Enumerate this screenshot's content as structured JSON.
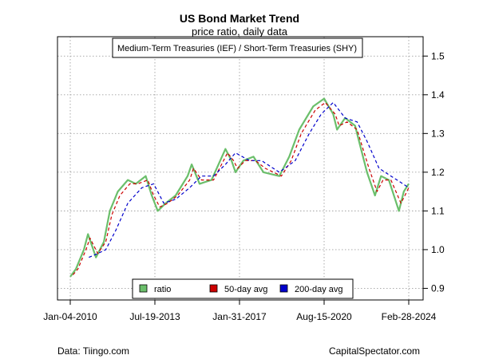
{
  "chart_data": {
    "type": "line",
    "title": "US Bond Market Trend",
    "subtitle": "price ratio, daily data",
    "annotation": "Medium-Term Treasuries (IEF) / Short-Term Treasuries (SHY)",
    "x_tick_labels": [
      "Jan-04-2010",
      "Jul-19-2013",
      "Jan-31-2017",
      "Aug-15-2020",
      "Feb-28-2024"
    ],
    "x_range": [
      "2010-01-04",
      "2024-02-28"
    ],
    "y_ticks": [
      "0.9",
      "1.0",
      "1.1",
      "1.2",
      "1.3",
      "1.4",
      "1.5"
    ],
    "ylim": [
      0.87,
      1.55
    ],
    "grid": true,
    "legend_position": "bottom-center",
    "series": [
      {
        "name": "ratio",
        "color": "#6bbf6b",
        "style": "solid",
        "points": [
          [
            "2010-01-04",
            0.93
          ],
          [
            "2010-04-01",
            0.95
          ],
          [
            "2010-08-01",
            1.0
          ],
          [
            "2010-10-01",
            1.04
          ],
          [
            "2011-02-01",
            0.98
          ],
          [
            "2011-06-01",
            1.02
          ],
          [
            "2011-09-01",
            1.1
          ],
          [
            "2012-01-01",
            1.15
          ],
          [
            "2012-06-01",
            1.18
          ],
          [
            "2012-10-01",
            1.17
          ],
          [
            "2013-03-01",
            1.19
          ],
          [
            "2013-06-01",
            1.14
          ],
          [
            "2013-09-01",
            1.1
          ],
          [
            "2014-01-01",
            1.12
          ],
          [
            "2014-06-01",
            1.14
          ],
          [
            "2014-12-01",
            1.19
          ],
          [
            "2015-02-01",
            1.22
          ],
          [
            "2015-06-01",
            1.17
          ],
          [
            "2015-12-01",
            1.18
          ],
          [
            "2016-07-01",
            1.26
          ],
          [
            "2016-10-01",
            1.23
          ],
          [
            "2016-12-01",
            1.2
          ],
          [
            "2017-04-01",
            1.23
          ],
          [
            "2017-09-01",
            1.24
          ],
          [
            "2018-02-01",
            1.2
          ],
          [
            "2018-10-01",
            1.19
          ],
          [
            "2019-03-01",
            1.24
          ],
          [
            "2019-08-01",
            1.31
          ],
          [
            "2020-03-01",
            1.37
          ],
          [
            "2020-08-15",
            1.39
          ],
          [
            "2021-01-01",
            1.35
          ],
          [
            "2021-03-01",
            1.31
          ],
          [
            "2021-07-01",
            1.34
          ],
          [
            "2021-12-01",
            1.32
          ],
          [
            "2022-03-01",
            1.26
          ],
          [
            "2022-06-01",
            1.2
          ],
          [
            "2022-10-01",
            1.14
          ],
          [
            "2023-01-01",
            1.19
          ],
          [
            "2023-05-01",
            1.18
          ],
          [
            "2023-10-01",
            1.1
          ],
          [
            "2023-12-15",
            1.15
          ],
          [
            "2024-02-28",
            1.17
          ]
        ]
      },
      {
        "name": "50-day avg",
        "color": "#cc0000",
        "style": "dashed",
        "points": [
          [
            "2010-02-15",
            0.935
          ],
          [
            "2010-05-01",
            0.95
          ],
          [
            "2010-09-01",
            1.0
          ],
          [
            "2010-11-01",
            1.03
          ],
          [
            "2011-03-01",
            0.99
          ],
          [
            "2011-07-01",
            1.02
          ],
          [
            "2011-10-01",
            1.09
          ],
          [
            "2012-02-01",
            1.14
          ],
          [
            "2012-07-01",
            1.17
          ],
          [
            "2012-11-01",
            1.17
          ],
          [
            "2013-04-01",
            1.18
          ],
          [
            "2013-07-01",
            1.14
          ],
          [
            "2013-10-01",
            1.11
          ],
          [
            "2014-02-01",
            1.12
          ],
          [
            "2014-07-01",
            1.14
          ],
          [
            "2015-01-01",
            1.18
          ],
          [
            "2015-03-01",
            1.21
          ],
          [
            "2015-07-01",
            1.18
          ],
          [
            "2016-01-01",
            1.18
          ],
          [
            "2016-08-01",
            1.25
          ],
          [
            "2016-11-01",
            1.23
          ],
          [
            "2017-01-01",
            1.21
          ],
          [
            "2017-05-01",
            1.23
          ],
          [
            "2017-10-01",
            1.23
          ],
          [
            "2018-03-01",
            1.21
          ],
          [
            "2018-11-01",
            1.19
          ],
          [
            "2019-04-01",
            1.23
          ],
          [
            "2019-09-01",
            1.3
          ],
          [
            "2020-04-01",
            1.36
          ],
          [
            "2020-09-01",
            1.38
          ],
          [
            "2021-02-01",
            1.35
          ],
          [
            "2021-04-01",
            1.32
          ],
          [
            "2021-08-01",
            1.33
          ],
          [
            "2022-01-01",
            1.31
          ],
          [
            "2022-04-01",
            1.26
          ],
          [
            "2022-07-01",
            1.21
          ],
          [
            "2022-11-01",
            1.15
          ],
          [
            "2023-02-01",
            1.18
          ],
          [
            "2023-06-01",
            1.18
          ],
          [
            "2023-11-01",
            1.12
          ],
          [
            "2024-01-01",
            1.14
          ],
          [
            "2024-02-28",
            1.16
          ]
        ]
      },
      {
        "name": "200-day avg",
        "color": "#0000cc",
        "style": "dashed",
        "points": [
          [
            "2010-10-15",
            0.98
          ],
          [
            "2011-03-01",
            0.99
          ],
          [
            "2011-07-01",
            1.0
          ],
          [
            "2011-12-01",
            1.05
          ],
          [
            "2012-06-01",
            1.12
          ],
          [
            "2013-01-01",
            1.16
          ],
          [
            "2013-07-01",
            1.17
          ],
          [
            "2013-12-01",
            1.12
          ],
          [
            "2014-06-01",
            1.13
          ],
          [
            "2015-01-01",
            1.16
          ],
          [
            "2015-07-01",
            1.19
          ],
          [
            "2016-01-01",
            1.19
          ],
          [
            "2016-07-01",
            1.22
          ],
          [
            "2016-12-01",
            1.25
          ],
          [
            "2017-07-01",
            1.23
          ],
          [
            "2018-01-01",
            1.23
          ],
          [
            "2018-10-01",
            1.2
          ],
          [
            "2019-06-01",
            1.23
          ],
          [
            "2020-01-01",
            1.3
          ],
          [
            "2020-07-01",
            1.35
          ],
          [
            "2021-01-01",
            1.38
          ],
          [
            "2021-07-01",
            1.34
          ],
          [
            "2022-01-01",
            1.33
          ],
          [
            "2022-06-01",
            1.28
          ],
          [
            "2022-12-01",
            1.21
          ],
          [
            "2023-06-01",
            1.19
          ],
          [
            "2023-12-01",
            1.17
          ],
          [
            "2024-02-28",
            1.16
          ]
        ]
      }
    ]
  },
  "footer": {
    "left": "Data: Tiingo.com",
    "right": "CapitalSpectator.com"
  }
}
